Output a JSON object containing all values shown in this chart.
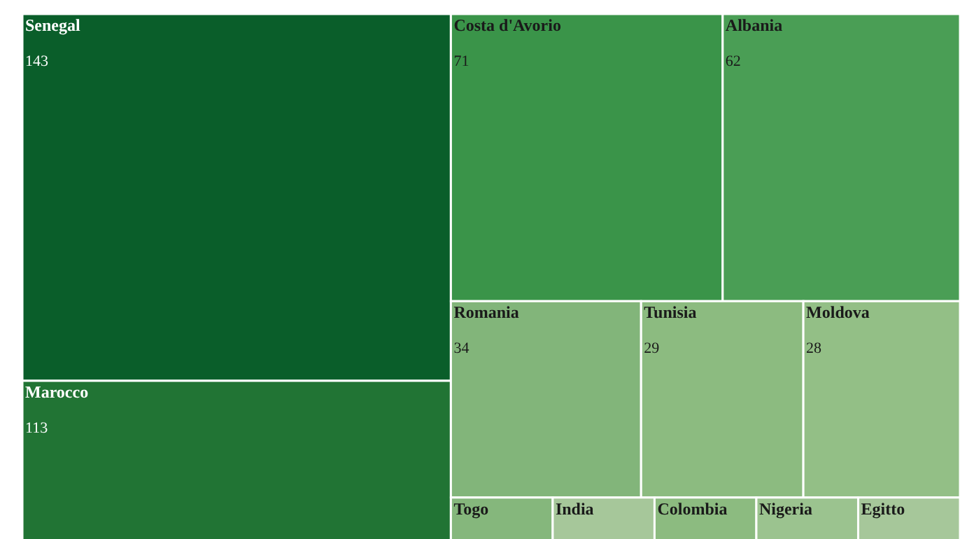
{
  "chart_data": {
    "type": "other",
    "categories": [
      "Senegal",
      "Marocco",
      "Costa d'Avorio",
      "Albania",
      "Romania",
      "Tunisia",
      "Moldova",
      "Togo",
      "India",
      "Colombia",
      "Nigeria",
      "Egitto"
    ],
    "values": [
      143,
      113,
      71,
      62,
      34,
      29,
      28,
      null,
      null,
      null,
      null,
      null
    ],
    "colors": [
      "#0a5e2a",
      "#217434",
      "#3a9449",
      "#4a9e55",
      "#82b57a",
      "#8cbb80",
      "#93bf86",
      "#85b77c",
      "#a6c79a",
      "#8cbb80",
      "#9bc38f",
      "#a6c79a"
    ],
    "data_labels": true
  }
}
